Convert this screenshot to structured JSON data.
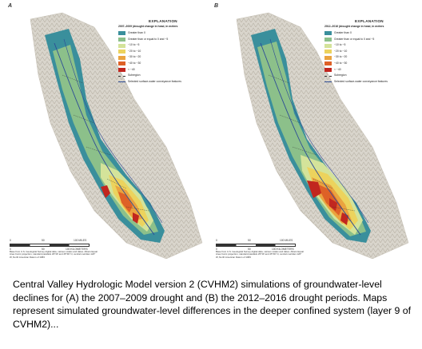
{
  "panels": [
    {
      "letter": "A",
      "legend": {
        "heading": "EXPLANATION",
        "subheading": "2007–2009 (drought change in head, in meters",
        "items": [
          {
            "label": "Greater than 0",
            "color": "#3a8f9c"
          },
          {
            "label": "Greater than or equal to 0 and −5",
            "color": "#8cc08a"
          },
          {
            "label": "−10 to −5",
            "color": "#d4e39a"
          },
          {
            "label": "−20 to −10",
            "color": "#ecd35d"
          },
          {
            "label": "−30 to −20",
            "color": "#eaa33f"
          },
          {
            "label": "−40 to −30",
            "color": "#de6127"
          },
          {
            "label": "< −40",
            "color": "#c1261f"
          }
        ],
        "boundary_label": "Subregion",
        "stream_label": "Selected surface-water conveyance features"
      },
      "scale": {
        "ticks": [
          "0",
          "50",
          "100 MILES"
        ],
        "ticks2": [
          "0",
          "50",
          "100 KILOMETERS"
        ]
      },
      "credit": "Base from U.S. Geological Survey digital data, various scales and dates. Albers Equal Area Conic projection, standard parallels 29°30' and 45°30' N, central meridian 120° W, North American Datum of 1983"
    },
    {
      "letter": "B",
      "legend": {
        "heading": "EXPLANATION",
        "subheading": "2012–2016 (drought change in head, in meters",
        "items": [
          {
            "label": "Greater than 0",
            "color": "#3a8f9c"
          },
          {
            "label": "Greater than or equal to 0 and −5",
            "color": "#8cc08a"
          },
          {
            "label": "−10 to −5",
            "color": "#d4e39a"
          },
          {
            "label": "−20 to −10",
            "color": "#ecd35d"
          },
          {
            "label": "−30 to −20",
            "color": "#eaa33f"
          },
          {
            "label": "−40 to −30",
            "color": "#de6127"
          },
          {
            "label": "< −40",
            "color": "#c1261f"
          }
        ],
        "boundary_label": "Subregion",
        "stream_label": "Selected surface-water conveyance features"
      },
      "scale": {
        "ticks": [
          "0",
          "50",
          "100 MILES"
        ],
        "ticks2": [
          "0",
          "50",
          "100 KILOMETERS"
        ]
      },
      "credit": "Base from U.S. Geological Survey digital data, various scales and dates. Albers Equal Area Conic projection, standard parallels 29°30' and 45°30' N, central meridian 120° W, North American Datum of 1983"
    }
  ],
  "caption": "Central Valley Hydrologic Model version 2 (CVHM2) simulations of groundwater-level declines for (A) the 2007–2009 drought and (B) the 2012–2016 drought periods. Maps represent simulated groundwater-level differences in the deeper confined system (layer 9 of CVHM2)..."
}
